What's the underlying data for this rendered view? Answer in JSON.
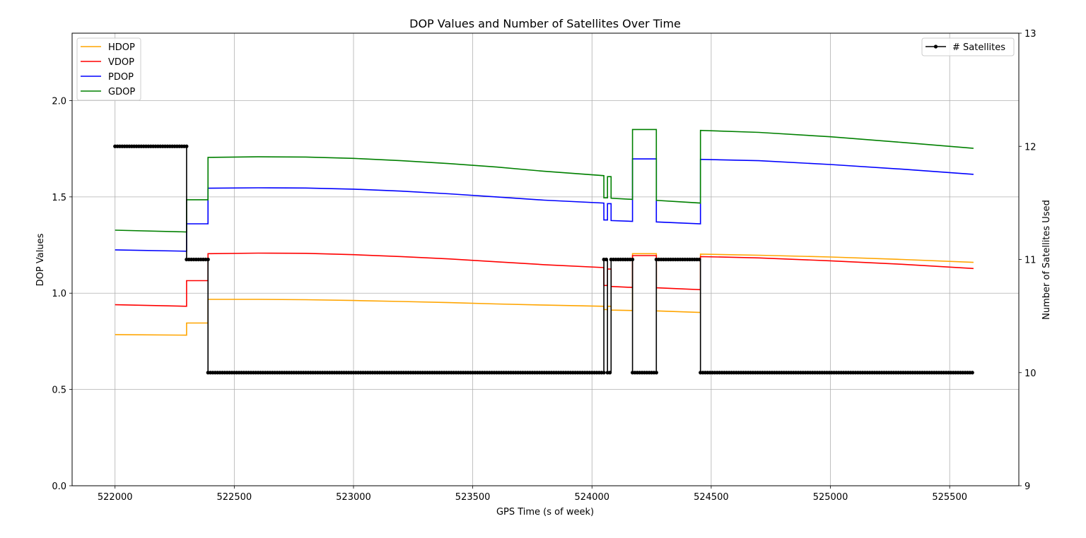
{
  "chart_data": {
    "type": "line",
    "title": "DOP Values and Number of Satellites Over Time",
    "xlabel": "GPS Time (s of week)",
    "ylabel": "DOP Values",
    "ylabel_right": "Number of Satellites Used",
    "xlim": [
      521820,
      525790
    ],
    "ylim": [
      0,
      2.35
    ],
    "ylim_right": [
      9,
      13
    ],
    "x_ticks": [
      522000,
      522500,
      523000,
      523500,
      524000,
      524500,
      525000,
      525500
    ],
    "y_ticks": [
      0.0,
      0.5,
      1.0,
      1.5,
      2.0
    ],
    "y_tick_labels": [
      "0.0",
      "0.5",
      "1.0",
      "1.5",
      "2.0"
    ],
    "y_right_ticks": [
      9,
      10,
      11,
      12,
      13
    ],
    "grid": true,
    "legend_left_placement": "top-left",
    "legend_right_placement": "top-right",
    "series": [
      {
        "name": "HDOP",
        "color": "#ffa500",
        "axis": "left",
        "x": [
          522000,
          522300,
          522300,
          522390,
          522390,
          522600,
          522800,
          523000,
          523200,
          523400,
          523600,
          523800,
          524050,
          524050,
          524065,
          524065,
          524080,
          524080,
          524170,
          524170,
          524270,
          524270,
          524455,
          524455,
          524700,
          525000,
          525300,
          525600
        ],
        "y": [
          0.785,
          0.782,
          0.845,
          0.845,
          0.968,
          0.968,
          0.966,
          0.962,
          0.957,
          0.951,
          0.944,
          0.938,
          0.932,
          0.915,
          0.915,
          0.932,
          0.932,
          0.912,
          0.91,
          1.205,
          1.205,
          0.908,
          0.9,
          1.203,
          1.197,
          1.188,
          1.175,
          1.16
        ]
      },
      {
        "name": "VDOP",
        "color": "#ff0000",
        "axis": "left",
        "x": [
          522000,
          522300,
          522300,
          522390,
          522390,
          522600,
          522800,
          523000,
          523200,
          523400,
          523600,
          523800,
          524050,
          524050,
          524065,
          524065,
          524080,
          524080,
          524170,
          524170,
          524270,
          524270,
          524455,
          524455,
          524700,
          525000,
          525300,
          525600
        ],
        "y": [
          0.94,
          0.932,
          1.065,
          1.065,
          1.205,
          1.208,
          1.207,
          1.2,
          1.19,
          1.178,
          1.163,
          1.148,
          1.133,
          1.04,
          1.04,
          1.125,
          1.125,
          1.035,
          1.03,
          1.195,
          1.195,
          1.028,
          1.018,
          1.19,
          1.183,
          1.168,
          1.15,
          1.128
        ]
      },
      {
        "name": "PDOP",
        "color": "#0000ff",
        "axis": "left",
        "x": [
          522000,
          522300,
          522300,
          522390,
          522390,
          522600,
          522800,
          523000,
          523200,
          523400,
          523600,
          523800,
          524050,
          524050,
          524065,
          524065,
          524080,
          524080,
          524170,
          524170,
          524270,
          524270,
          524455,
          524455,
          524700,
          525000,
          525300,
          525600
        ],
        "y": [
          1.225,
          1.218,
          1.36,
          1.36,
          1.545,
          1.547,
          1.546,
          1.54,
          1.53,
          1.516,
          1.5,
          1.483,
          1.468,
          1.38,
          1.38,
          1.465,
          1.465,
          1.377,
          1.373,
          1.697,
          1.697,
          1.37,
          1.36,
          1.695,
          1.688,
          1.668,
          1.644,
          1.617
        ]
      },
      {
        "name": "GDOP",
        "color": "#008000",
        "axis": "left",
        "x": [
          522000,
          522300,
          522300,
          522390,
          522390,
          522600,
          522800,
          523000,
          523200,
          523400,
          523600,
          523800,
          524050,
          524050,
          524065,
          524065,
          524080,
          524080,
          524170,
          524170,
          524270,
          524270,
          524455,
          524455,
          524700,
          525000,
          525300,
          525600
        ],
        "y": [
          1.327,
          1.318,
          1.485,
          1.485,
          1.705,
          1.708,
          1.707,
          1.7,
          1.688,
          1.673,
          1.655,
          1.633,
          1.61,
          1.495,
          1.495,
          1.605,
          1.605,
          1.493,
          1.487,
          1.85,
          1.85,
          1.482,
          1.468,
          1.845,
          1.835,
          1.812,
          1.783,
          1.752
        ]
      },
      {
        "name": "# Satellites",
        "color": "#000000",
        "axis": "right",
        "markers": true,
        "x": [
          522000,
          522300,
          522300,
          522390,
          522390,
          524050,
          524050,
          524065,
          524065,
          524080,
          524080,
          524170,
          524170,
          524270,
          524270,
          524455,
          524455,
          525600
        ],
        "y": [
          12,
          12,
          11,
          11,
          10,
          10,
          11,
          11,
          10,
          10,
          11,
          11,
          10,
          10,
          11,
          11,
          10,
          10
        ]
      }
    ]
  }
}
